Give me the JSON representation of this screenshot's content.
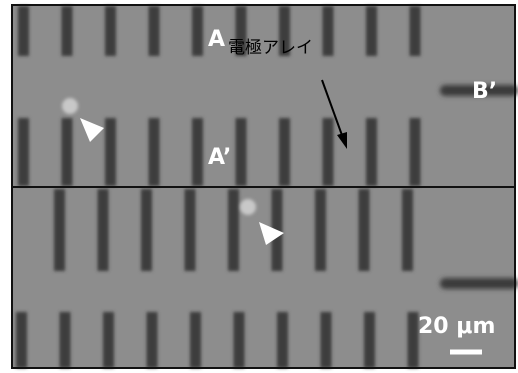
{
  "labels": {
    "top_left": "A",
    "array": "電極アレイ",
    "right": "B’",
    "bottom_left": "A’",
    "scale": "20 μm"
  }
}
